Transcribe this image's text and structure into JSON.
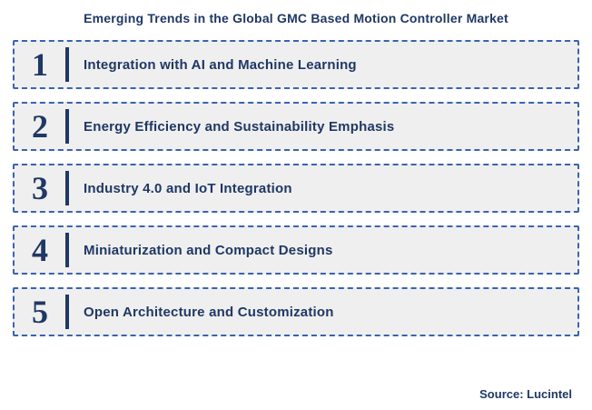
{
  "title": "Emerging Trends in the Global GMC Based Motion Controller Market",
  "trends": [
    {
      "number": "1",
      "label": "Integration with AI and Machine Learning"
    },
    {
      "number": "2",
      "label": "Energy Efficiency and Sustainability Emphasis"
    },
    {
      "number": "3",
      "label": "Industry 4.0 and IoT Integration"
    },
    {
      "number": "4",
      "label": "Miniaturization and Compact Designs"
    },
    {
      "number": "5",
      "label": "Open Architecture and Customization"
    }
  ],
  "source": "Source: Lucintel",
  "colors": {
    "navy_text": "#1f3864",
    "box_background": "#efefef",
    "dashed_border": "#3a63ad"
  }
}
